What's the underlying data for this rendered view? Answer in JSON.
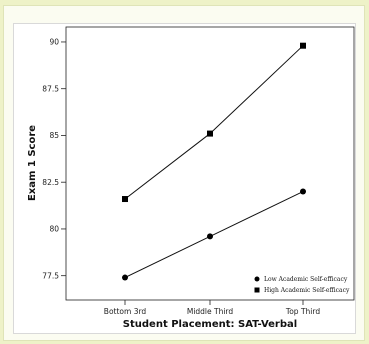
{
  "chart_data": {
    "type": "line",
    "xlabel": "Student Placement: SAT-Verbal",
    "ylabel": "Exam 1 Score",
    "categories": [
      "Bottom 3rd",
      "Middle Third",
      "Top Third"
    ],
    "yticks": [
      "77.5",
      "80",
      "82.5",
      "85",
      "87.5",
      "90"
    ],
    "ylim": [
      76.2,
      90.8
    ],
    "series": [
      {
        "name": "Low Academic Self-efficacy",
        "marker": "circle",
        "values": [
          77.4,
          79.6,
          82.0
        ]
      },
      {
        "name": "High Academic Self-efficacy",
        "marker": "square",
        "values": [
          81.6,
          85.1,
          89.8
        ]
      }
    ],
    "legend_position": "bottom-right",
    "grid": false
  }
}
